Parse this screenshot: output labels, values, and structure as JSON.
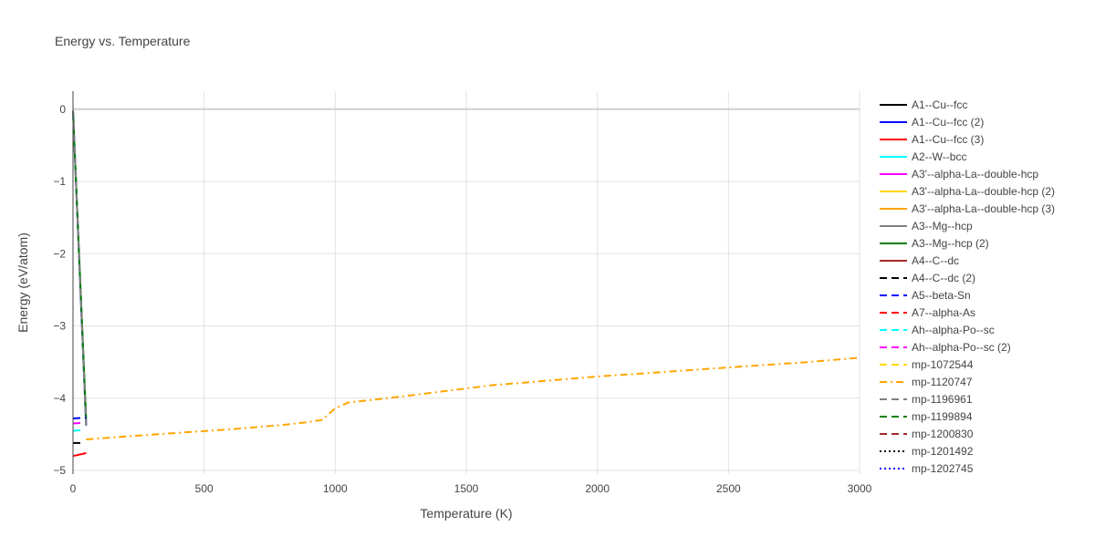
{
  "chart_data": {
    "type": "line",
    "title": "Energy vs. Temperature",
    "xlabel": "Temperature (K)",
    "ylabel": "Energy (eV/atom)",
    "xlim": [
      0,
      3000
    ],
    "ylim": [
      -5.05,
      0.25
    ],
    "x_ticks": [
      0,
      500,
      1000,
      1500,
      2000,
      2500,
      3000
    ],
    "x_tick_labels": [
      "0",
      "500",
      "1000",
      "1500",
      "2000",
      "2500",
      "3000"
    ],
    "y_ticks": [
      0,
      -1,
      -2,
      -3,
      -4,
      -5
    ],
    "y_tick_labels": [
      "0",
      "−1",
      "−2",
      "−3",
      "−4",
      "−5"
    ],
    "grid": true,
    "legend_position": "right",
    "series": [
      {
        "name": "A1--Cu--fcc",
        "color": "#000000",
        "dash": "solid",
        "x": [],
        "y": []
      },
      {
        "name": "A1--Cu--fcc (2)",
        "color": "#0000ff",
        "dash": "solid",
        "x": [
          0,
          50
        ],
        "y": [
          -0.02,
          -4.38
        ]
      },
      {
        "name": "A1--Cu--fcc (3)",
        "color": "#ff0000",
        "dash": "solid",
        "x": [
          0,
          50
        ],
        "y": [
          -4.8,
          -4.76
        ]
      },
      {
        "name": "A2--W--bcc",
        "color": "#00ffff",
        "dash": "solid",
        "x": [],
        "y": []
      },
      {
        "name": "A3'--alpha-La--double-hcp",
        "color": "#ff00ff",
        "dash": "solid",
        "x": [],
        "y": []
      },
      {
        "name": "A3'--alpha-La--double-hcp (2)",
        "color": "#ffd700",
        "dash": "solid",
        "x": [],
        "y": []
      },
      {
        "name": "A3'--alpha-La--double-hcp (3)",
        "color": "#ffa500",
        "dash": "solid",
        "x": [],
        "y": []
      },
      {
        "name": "A3--Mg--hcp",
        "color": "#808080",
        "dash": "solid",
        "x": [],
        "y": []
      },
      {
        "name": "A3--Mg--hcp (2)",
        "color": "#008000",
        "dash": "solid",
        "x": [
          0,
          50
        ],
        "y": [
          -0.02,
          -4.3
        ]
      },
      {
        "name": "A4--C--dc",
        "color": "#a52a2a",
        "dash": "solid",
        "x": [],
        "y": []
      },
      {
        "name": "A4--C--dc (2)",
        "color": "#000000",
        "dash": "dash",
        "x": [
          0,
          40
        ],
        "y": [
          -4.62,
          -4.62
        ]
      },
      {
        "name": "A5--beta-Sn",
        "color": "#0000ff",
        "dash": "dash",
        "x": [
          0,
          50
        ],
        "y": [
          -4.28,
          -4.27
        ]
      },
      {
        "name": "A7--alpha-As",
        "color": "#ff0000",
        "dash": "dash",
        "x": [],
        "y": []
      },
      {
        "name": "Ah--alpha-Po--sc",
        "color": "#00ffff",
        "dash": "dash",
        "x": [
          0,
          40
        ],
        "y": [
          -4.45,
          -4.44
        ]
      },
      {
        "name": "Ah--alpha-Po--sc (2)",
        "color": "#ff00ff",
        "dash": "dash",
        "x": [
          0,
          40
        ],
        "y": [
          -4.35,
          -4.34
        ]
      },
      {
        "name": "mp-1072544",
        "color": "#ffd700",
        "dash": "dash",
        "x": [],
        "y": []
      },
      {
        "name": "mp-1120747",
        "color": "#ffa500",
        "dash": "dashdot",
        "x": [
          50,
          200,
          400,
          600,
          800,
          900,
          950,
          1000,
          1050,
          1200,
          1400,
          1600,
          1800,
          2000,
          2200,
          2400,
          2600,
          2800,
          3000
        ],
        "y": [
          -4.57,
          -4.53,
          -4.48,
          -4.43,
          -4.37,
          -4.33,
          -4.3,
          -4.14,
          -4.06,
          -4.0,
          -3.91,
          -3.82,
          -3.76,
          -3.7,
          -3.65,
          -3.6,
          -3.55,
          -3.5,
          -3.44
        ]
      },
      {
        "name": "mp-1196961",
        "color": "#808080",
        "dash": "dash",
        "x": [
          0,
          50
        ],
        "y": [
          -0.02,
          -4.4
        ]
      },
      {
        "name": "mp-1199894",
        "color": "#008000",
        "dash": "dash",
        "x": [],
        "y": []
      },
      {
        "name": "mp-1200830",
        "color": "#a52a2a",
        "dash": "dash",
        "x": [],
        "y": []
      },
      {
        "name": "mp-1201492",
        "color": "#000000",
        "dash": "dot",
        "x": [],
        "y": []
      },
      {
        "name": "mp-1202745",
        "color": "#0000ff",
        "dash": "dot",
        "x": [],
        "y": []
      }
    ]
  }
}
